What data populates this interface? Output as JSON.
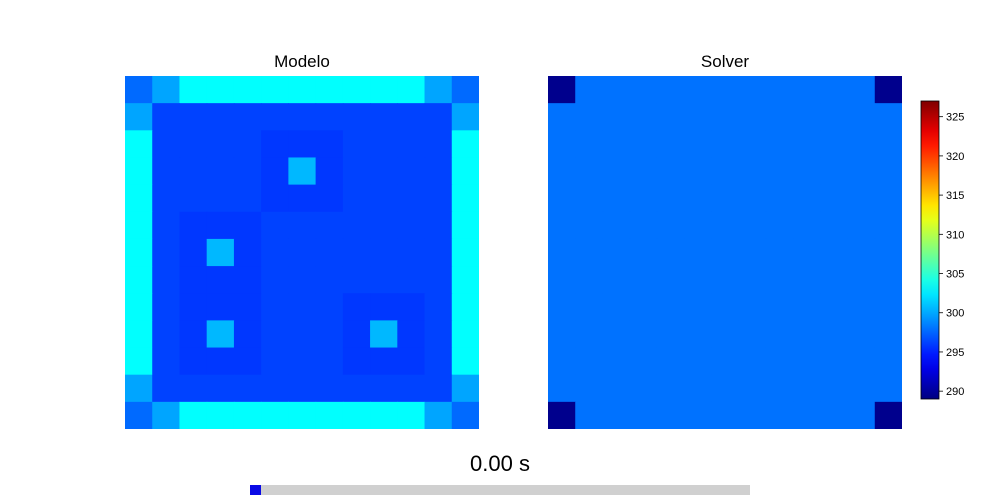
{
  "panels": [
    {
      "title": "Modelo"
    },
    {
      "title": "Solver"
    }
  ],
  "colorbar": {
    "colormap": "jet",
    "min": 289,
    "max": 327,
    "ticks": [
      290,
      295,
      300,
      305,
      310,
      315,
      320,
      325
    ]
  },
  "time": {
    "label": "0.00 s",
    "progress": 0.0
  },
  "chart_data": [
    {
      "type": "heatmap",
      "title": "Modelo",
      "rows": 13,
      "cols": 13,
      "values": [
        [
          297.7,
          299.9,
          303.3,
          303.3,
          303.3,
          303.3,
          303.3,
          303.3,
          303.3,
          303.3,
          303.3,
          299.9,
          297.7
        ],
        [
          299.9,
          296.2,
          296.2,
          296.2,
          296.2,
          296.2,
          296.2,
          296.2,
          296.2,
          296.2,
          296.2,
          296.2,
          299.9
        ],
        [
          303.3,
          296.2,
          296.2,
          296.2,
          296.2,
          295.8,
          295.8,
          295.8,
          296.2,
          296.2,
          296.2,
          296.2,
          303.3
        ],
        [
          303.3,
          296.2,
          296.2,
          296.2,
          296.2,
          295.8,
          300.6,
          295.8,
          296.2,
          296.2,
          296.2,
          296.2,
          303.3
        ],
        [
          303.3,
          296.2,
          296.2,
          296.2,
          296.2,
          295.8,
          295.8,
          295.8,
          296.2,
          296.2,
          296.2,
          296.2,
          303.3
        ],
        [
          303.3,
          296.2,
          295.8,
          295.8,
          295.8,
          296.2,
          296.2,
          296.2,
          296.2,
          296.2,
          296.2,
          296.2,
          303.3
        ],
        [
          303.3,
          296.2,
          295.8,
          300.6,
          295.8,
          296.2,
          296.2,
          296.2,
          296.2,
          296.2,
          296.2,
          296.2,
          303.3
        ],
        [
          303.3,
          296.2,
          295.8,
          295.8,
          295.8,
          296.2,
          296.2,
          296.2,
          296.2,
          296.2,
          296.2,
          296.2,
          303.3
        ],
        [
          303.3,
          296.2,
          295.8,
          295.8,
          295.8,
          296.2,
          296.2,
          296.2,
          295.8,
          295.8,
          295.8,
          296.2,
          303.3
        ],
        [
          303.3,
          296.2,
          295.8,
          300.6,
          295.8,
          296.2,
          296.2,
          296.2,
          295.8,
          300.6,
          295.8,
          296.2,
          303.3
        ],
        [
          303.3,
          296.2,
          295.8,
          295.8,
          295.8,
          296.2,
          296.2,
          296.2,
          295.8,
          295.8,
          295.8,
          296.2,
          303.3
        ],
        [
          299.9,
          296.2,
          296.2,
          296.2,
          296.2,
          296.2,
          296.2,
          296.2,
          296.2,
          296.2,
          296.2,
          296.2,
          299.9
        ],
        [
          297.7,
          299.9,
          303.3,
          303.3,
          303.3,
          303.3,
          303.3,
          303.3,
          303.3,
          303.3,
          303.3,
          299.9,
          297.7
        ]
      ]
    },
    {
      "type": "heatmap",
      "title": "Solver",
      "rows": 13,
      "cols": 13,
      "base_value": 298.0,
      "corner_value": 289.5
    }
  ]
}
